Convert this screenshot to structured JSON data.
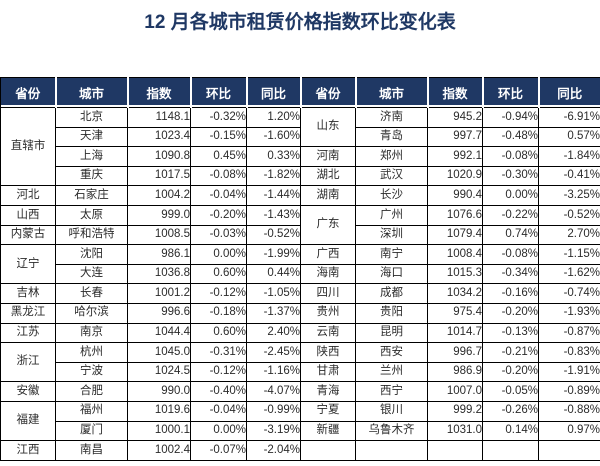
{
  "title": "12 月各城市租赁价格指数环比变化表",
  "colors": {
    "header_bg": "#1F3864",
    "header_text": "#FFFFFF",
    "title": "#1F3864",
    "border": "#000000",
    "text": "#2B2B2B"
  },
  "table": {
    "headers": [
      "省份",
      "城市",
      "指数",
      "环比",
      "同比"
    ],
    "left": [
      {
        "province": "直辖市",
        "cities": [
          {
            "city": "北京",
            "index": "1148.1",
            "mom": "-0.32%",
            "yoy": "1.20%"
          },
          {
            "city": "天津",
            "index": "1023.4",
            "mom": "-0.15%",
            "yoy": "-1.60%"
          },
          {
            "city": "上海",
            "index": "1090.8",
            "mom": "0.45%",
            "yoy": "0.33%"
          },
          {
            "city": "重庆",
            "index": "1017.5",
            "mom": "-0.08%",
            "yoy": "-1.82%"
          }
        ]
      },
      {
        "province": "河北",
        "cities": [
          {
            "city": "石家庄",
            "index": "1004.2",
            "mom": "-0.04%",
            "yoy": "-1.44%"
          }
        ]
      },
      {
        "province": "山西",
        "cities": [
          {
            "city": "太原",
            "index": "999.0",
            "mom": "-0.20%",
            "yoy": "-1.43%"
          }
        ]
      },
      {
        "province": "内蒙古",
        "cities": [
          {
            "city": "呼和浩特",
            "index": "1008.5",
            "mom": "-0.03%",
            "yoy": "-0.52%"
          }
        ]
      },
      {
        "province": "辽宁",
        "cities": [
          {
            "city": "沈阳",
            "index": "986.1",
            "mom": "0.00%",
            "yoy": "-1.99%"
          },
          {
            "city": "大连",
            "index": "1036.8",
            "mom": "0.60%",
            "yoy": "0.44%"
          }
        ]
      },
      {
        "province": "吉林",
        "cities": [
          {
            "city": "长春",
            "index": "1001.2",
            "mom": "-0.12%",
            "yoy": "-1.05%"
          }
        ]
      },
      {
        "province": "黑龙江",
        "cities": [
          {
            "city": "哈尔滨",
            "index": "996.6",
            "mom": "-0.18%",
            "yoy": "-1.37%"
          }
        ]
      },
      {
        "province": "江苏",
        "cities": [
          {
            "city": "南京",
            "index": "1044.4",
            "mom": "0.60%",
            "yoy": "2.40%"
          }
        ]
      },
      {
        "province": "浙江",
        "cities": [
          {
            "city": "杭州",
            "index": "1045.0",
            "mom": "-0.31%",
            "yoy": "-2.45%"
          },
          {
            "city": "宁波",
            "index": "1024.5",
            "mom": "-0.12%",
            "yoy": "-1.16%"
          }
        ]
      },
      {
        "province": "安徽",
        "cities": [
          {
            "city": "合肥",
            "index": "990.0",
            "mom": "-0.40%",
            "yoy": "-4.07%"
          }
        ]
      },
      {
        "province": "福建",
        "cities": [
          {
            "city": "福州",
            "index": "1019.6",
            "mom": "-0.04%",
            "yoy": "-0.99%"
          },
          {
            "city": "厦门",
            "index": "1000.1",
            "mom": "0.00%",
            "yoy": "-3.19%"
          }
        ]
      },
      {
        "province": "江西",
        "cities": [
          {
            "city": "南昌",
            "index": "1002.4",
            "mom": "-0.07%",
            "yoy": "-2.04%"
          }
        ]
      }
    ],
    "right": [
      {
        "province": "山东",
        "cities": [
          {
            "city": "济南",
            "index": "945.2",
            "mom": "-0.94%",
            "yoy": "-6.91%"
          },
          {
            "city": "青岛",
            "index": "997.7",
            "mom": "-0.48%",
            "yoy": "0.57%"
          }
        ]
      },
      {
        "province": "河南",
        "cities": [
          {
            "city": "郑州",
            "index": "992.1",
            "mom": "-0.08%",
            "yoy": "-1.84%"
          }
        ]
      },
      {
        "province": "湖北",
        "cities": [
          {
            "city": "武汉",
            "index": "1020.9",
            "mom": "-0.30%",
            "yoy": "-0.41%"
          }
        ]
      },
      {
        "province": "湖南",
        "cities": [
          {
            "city": "长沙",
            "index": "990.4",
            "mom": "0.00%",
            "yoy": "-3.25%"
          }
        ]
      },
      {
        "province": "广东",
        "cities": [
          {
            "city": "广州",
            "index": "1076.6",
            "mom": "-0.22%",
            "yoy": "-0.52%"
          },
          {
            "city": "深圳",
            "index": "1079.4",
            "mom": "0.74%",
            "yoy": "2.70%"
          }
        ]
      },
      {
        "province": "广西",
        "cities": [
          {
            "city": "南宁",
            "index": "1008.4",
            "mom": "-0.08%",
            "yoy": "-1.15%"
          }
        ]
      },
      {
        "province": "海南",
        "cities": [
          {
            "city": "海口",
            "index": "1015.3",
            "mom": "-0.34%",
            "yoy": "-1.62%"
          }
        ]
      },
      {
        "province": "四川",
        "cities": [
          {
            "city": "成都",
            "index": "1034.2",
            "mom": "-0.16%",
            "yoy": "-0.74%"
          }
        ]
      },
      {
        "province": "贵州",
        "cities": [
          {
            "city": "贵阳",
            "index": "975.4",
            "mom": "-0.20%",
            "yoy": "-1.93%"
          }
        ]
      },
      {
        "province": "云南",
        "cities": [
          {
            "city": "昆明",
            "index": "1014.7",
            "mom": "-0.13%",
            "yoy": "-0.87%"
          }
        ]
      },
      {
        "province": "陕西",
        "cities": [
          {
            "city": "西安",
            "index": "996.7",
            "mom": "-0.21%",
            "yoy": "-0.83%"
          }
        ]
      },
      {
        "province": "甘肃",
        "cities": [
          {
            "city": "兰州",
            "index": "986.9",
            "mom": "-0.20%",
            "yoy": "-1.91%"
          }
        ]
      },
      {
        "province": "青海",
        "cities": [
          {
            "city": "西宁",
            "index": "1007.0",
            "mom": "-0.05%",
            "yoy": "-0.89%"
          }
        ]
      },
      {
        "province": "宁夏",
        "cities": [
          {
            "city": "银川",
            "index": "999.2",
            "mom": "-0.26%",
            "yoy": "-0.88%"
          }
        ]
      },
      {
        "province": "新疆",
        "cities": [
          {
            "city": "乌鲁木齐",
            "index": "1031.0",
            "mom": "0.14%",
            "yoy": "0.97%"
          }
        ]
      },
      {
        "province": "",
        "cities": [
          {
            "city": "",
            "index": "",
            "mom": "",
            "yoy": ""
          }
        ]
      }
    ]
  }
}
